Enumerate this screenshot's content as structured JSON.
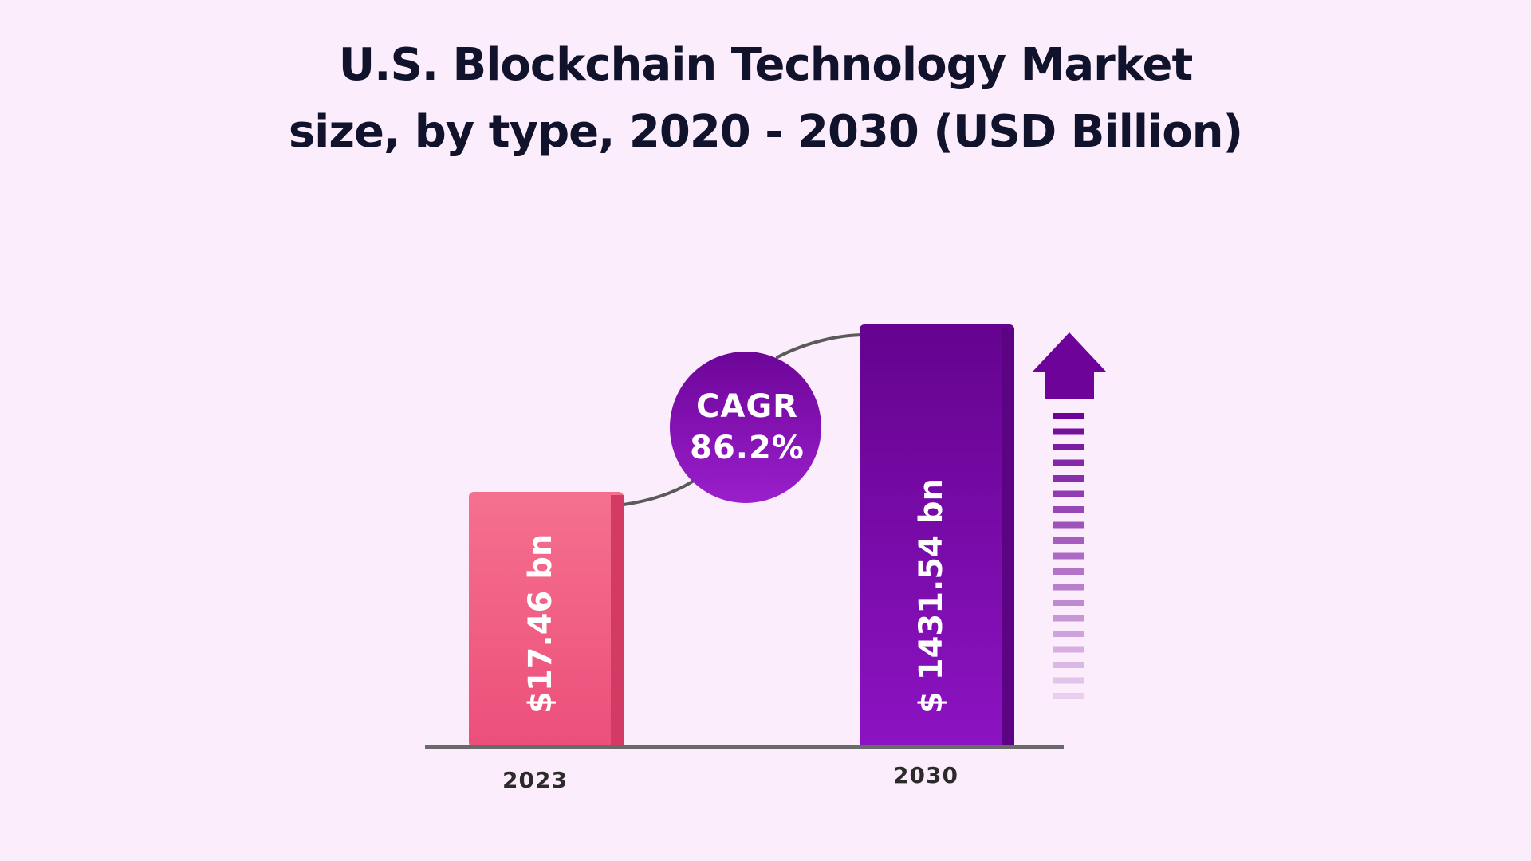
{
  "title_lines": [
    "U.S. Blockchain Technology Market",
    "size, by type, 2020 - 2030 (USD Billion)"
  ],
  "annotation": {
    "line1": "CAGR",
    "line2": "86.2%"
  },
  "colors": {
    "background": "#fcedfc",
    "bar_2023": "#f0577e",
    "bar_2030": "#7b0bb0",
    "cagr_circle": "#8a12b8",
    "arrow": "#6e0399"
  },
  "chart_data": {
    "type": "bar",
    "title": "U.S. Blockchain Technology Market size, by type, 2020 - 2030 (USD Billion)",
    "categories": [
      "2023",
      "2030"
    ],
    "values": [
      17.46,
      1431.54
    ],
    "data_labels": [
      "$17.46 bn",
      "$ 1431.54 bn"
    ],
    "annotation": "CAGR 86.2%",
    "xlabel": "",
    "ylabel": "",
    "grid": false,
    "legend": "none"
  }
}
